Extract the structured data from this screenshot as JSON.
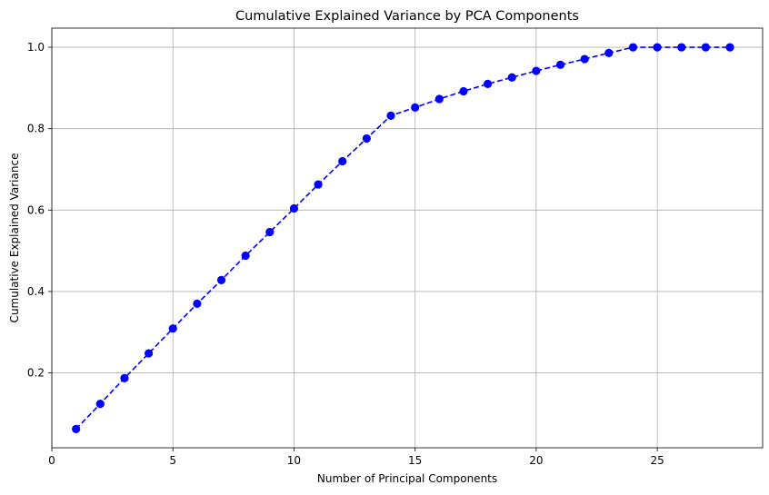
{
  "chart_data": {
    "type": "line",
    "title": "Cumulative Explained Variance by PCA Components",
    "xlabel": "Number of Principal Components",
    "ylabel": "Cumulative Explained Variance",
    "xlim": [
      0,
      29.35
    ],
    "ylim": [
      0.016,
      1.047
    ],
    "xticks": [
      0,
      5,
      10,
      15,
      20,
      25
    ],
    "yticks": [
      0.2,
      0.4,
      0.6,
      0.8,
      1.0
    ],
    "xtick_labels": [
      "0",
      "5",
      "10",
      "15",
      "20",
      "25"
    ],
    "ytick_labels": [
      "0.2",
      "0.4",
      "0.6",
      "0.8",
      "1.0"
    ],
    "grid": true,
    "line_style": "dashed",
    "marker": "circle",
    "color": "#0000ff",
    "series": [
      {
        "x": [
          1,
          2,
          3,
          4,
          5,
          6,
          7,
          8,
          9,
          10,
          11,
          12,
          13,
          14,
          15,
          16,
          17,
          18,
          19,
          20,
          21,
          22,
          23,
          24,
          25,
          26,
          27,
          28
        ],
        "values": [
          0.062,
          0.124,
          0.187,
          0.248,
          0.309,
          0.37,
          0.428,
          0.488,
          0.546,
          0.604,
          0.663,
          0.72,
          0.776,
          0.832,
          0.852,
          0.873,
          0.892,
          0.91,
          0.926,
          0.942,
          0.957,
          0.971,
          0.986,
          1.0,
          1.0,
          1.0,
          1.0,
          1.0
        ]
      }
    ]
  }
}
